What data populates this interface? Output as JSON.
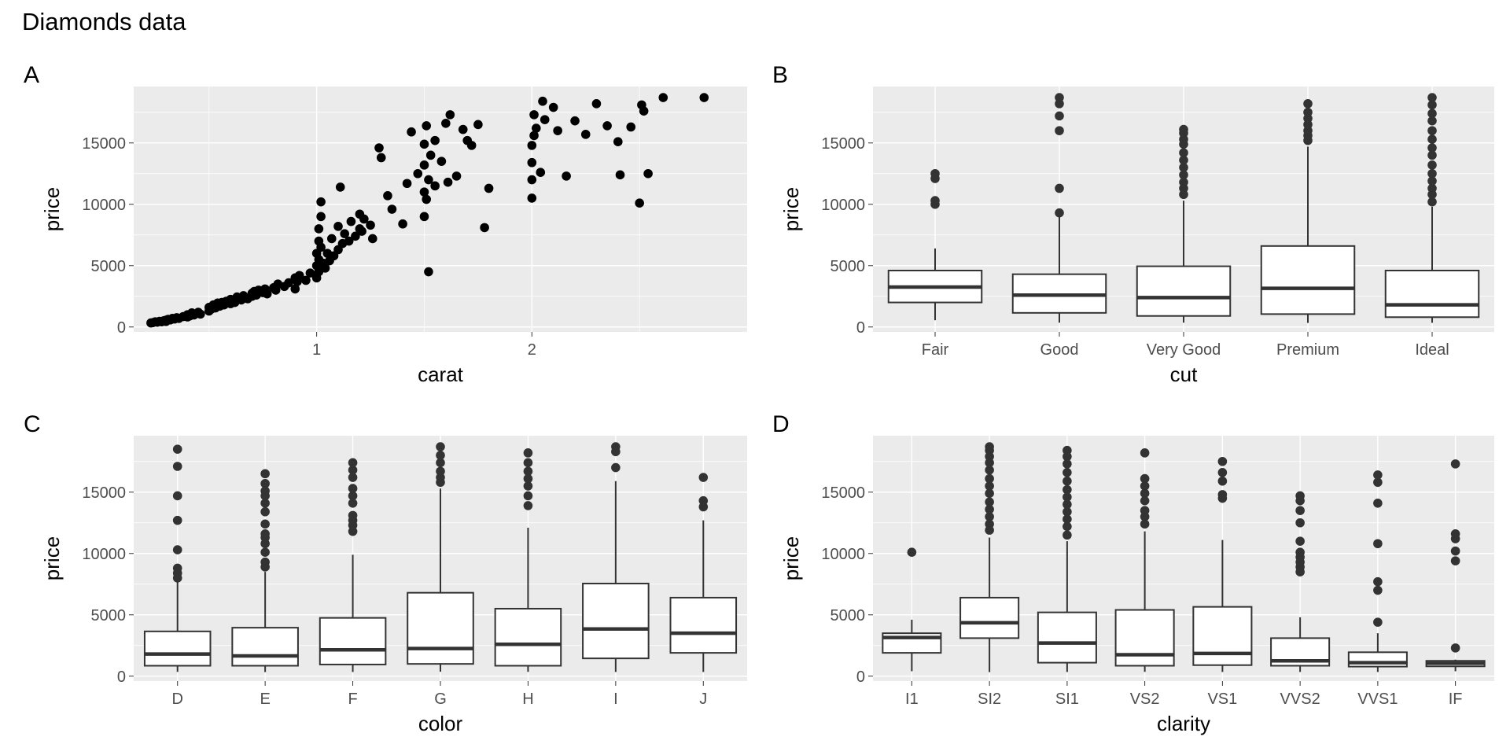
{
  "title": "Diamonds data",
  "chart_data": [
    {
      "tag": "A",
      "type": "scatter",
      "xlabel": "carat",
      "ylabel": "price",
      "xlim": [
        0.15,
        3.0
      ],
      "ylim": [
        -400,
        19600
      ],
      "x_ticks": [
        1,
        2
      ],
      "y_ticks": [
        0,
        5000,
        10000,
        15000
      ],
      "grid": true,
      "points": [
        [
          0.23,
          330
        ],
        [
          0.24,
          360
        ],
        [
          0.25,
          420
        ],
        [
          0.26,
          390
        ],
        [
          0.27,
          460
        ],
        [
          0.28,
          420
        ],
        [
          0.29,
          510
        ],
        [
          0.3,
          450
        ],
        [
          0.3,
          560
        ],
        [
          0.31,
          620
        ],
        [
          0.32,
          580
        ],
        [
          0.33,
          700
        ],
        [
          0.34,
          650
        ],
        [
          0.35,
          760
        ],
        [
          0.36,
          700
        ],
        [
          0.38,
          850
        ],
        [
          0.4,
          820
        ],
        [
          0.4,
          1000
        ],
        [
          0.41,
          900
        ],
        [
          0.42,
          1150
        ],
        [
          0.43,
          980
        ],
        [
          0.45,
          1200
        ],
        [
          0.46,
          1050
        ],
        [
          0.5,
          1300
        ],
        [
          0.5,
          1600
        ],
        [
          0.51,
          1450
        ],
        [
          0.52,
          1800
        ],
        [
          0.53,
          1550
        ],
        [
          0.54,
          1950
        ],
        [
          0.55,
          1700
        ],
        [
          0.56,
          2000
        ],
        [
          0.57,
          1800
        ],
        [
          0.58,
          2100
        ],
        [
          0.6,
          1900
        ],
        [
          0.6,
          2250
        ],
        [
          0.62,
          2000
        ],
        [
          0.63,
          2450
        ],
        [
          0.65,
          2200
        ],
        [
          0.66,
          2550
        ],
        [
          0.68,
          2300
        ],
        [
          0.7,
          2500
        ],
        [
          0.7,
          2750
        ],
        [
          0.71,
          2900
        ],
        [
          0.72,
          2600
        ],
        [
          0.73,
          3000
        ],
        [
          0.75,
          2800
        ],
        [
          0.76,
          3100
        ],
        [
          0.77,
          2700
        ],
        [
          0.8,
          3200
        ],
        [
          0.81,
          3000
        ],
        [
          0.82,
          3500
        ],
        [
          0.85,
          3300
        ],
        [
          0.87,
          3600
        ],
        [
          0.9,
          3100
        ],
        [
          0.9,
          4000
        ],
        [
          0.91,
          3700
        ],
        [
          0.92,
          4200
        ],
        [
          0.95,
          3800
        ],
        [
          0.97,
          4400
        ],
        [
          1.0,
          4000
        ],
        [
          1.0,
          5000
        ],
        [
          1.0,
          6000
        ],
        [
          1.01,
          4500
        ],
        [
          1.01,
          5500
        ],
        [
          1.01,
          7000
        ],
        [
          1.01,
          8000
        ],
        [
          1.02,
          6500
        ],
        [
          1.02,
          9000
        ],
        [
          1.02,
          10200
        ],
        [
          1.03,
          5200
        ],
        [
          1.04,
          4800
        ],
        [
          1.05,
          6000
        ],
        [
          1.06,
          5400
        ],
        [
          1.07,
          7200
        ],
        [
          1.08,
          5800
        ],
        [
          1.1,
          6300
        ],
        [
          1.1,
          8200
        ],
        [
          1.11,
          11400
        ],
        [
          1.12,
          6800
        ],
        [
          1.13,
          7600
        ],
        [
          1.15,
          7000
        ],
        [
          1.16,
          8600
        ],
        [
          1.18,
          7400
        ],
        [
          1.2,
          8000
        ],
        [
          1.2,
          9200
        ],
        [
          1.21,
          7800
        ],
        [
          1.22,
          8800
        ],
        [
          1.25,
          8300
        ],
        [
          1.26,
          7200
        ],
        [
          1.29,
          14600
        ],
        [
          1.3,
          13800
        ],
        [
          1.33,
          10700
        ],
        [
          1.35,
          9600
        ],
        [
          1.4,
          8400
        ],
        [
          1.42,
          11700
        ],
        [
          1.44,
          15900
        ],
        [
          1.47,
          12500
        ],
        [
          1.5,
          9000
        ],
        [
          1.5,
          11000
        ],
        [
          1.5,
          13200
        ],
        [
          1.5,
          14900
        ],
        [
          1.51,
          10400
        ],
        [
          1.51,
          16400
        ],
        [
          1.52,
          12000
        ],
        [
          1.52,
          4500
        ],
        [
          1.53,
          14000
        ],
        [
          1.55,
          11500
        ],
        [
          1.55,
          15200
        ],
        [
          1.58,
          13500
        ],
        [
          1.6,
          16600
        ],
        [
          1.61,
          11800
        ],
        [
          1.62,
          17300
        ],
        [
          1.65,
          12300
        ],
        [
          1.68,
          16100
        ],
        [
          1.7,
          15200
        ],
        [
          1.72,
          14800
        ],
        [
          1.75,
          16500
        ],
        [
          1.78,
          8100
        ],
        [
          1.8,
          11300
        ],
        [
          2.0,
          10500
        ],
        [
          2.0,
          12000
        ],
        [
          2.0,
          13400
        ],
        [
          2.0,
          14800
        ],
        [
          2.01,
          15600
        ],
        [
          2.01,
          17300
        ],
        [
          2.02,
          16200
        ],
        [
          2.04,
          12600
        ],
        [
          2.05,
          18400
        ],
        [
          2.06,
          16900
        ],
        [
          2.1,
          17900
        ],
        [
          2.12,
          16000
        ],
        [
          2.16,
          12300
        ],
        [
          2.2,
          16800
        ],
        [
          2.25,
          15700
        ],
        [
          2.3,
          18200
        ],
        [
          2.35,
          16400
        ],
        [
          2.4,
          15100
        ],
        [
          2.41,
          12400
        ],
        [
          2.46,
          16300
        ],
        [
          2.5,
          10100
        ],
        [
          2.51,
          18100
        ],
        [
          2.52,
          17600
        ],
        [
          2.54,
          12500
        ],
        [
          2.61,
          18700
        ],
        [
          2.8,
          18700
        ]
      ]
    },
    {
      "tag": "B",
      "type": "box",
      "xlabel": "cut",
      "ylabel": "price",
      "ylim": [
        -400,
        19600
      ],
      "y_ticks": [
        0,
        5000,
        10000,
        15000
      ],
      "categories": [
        "Fair",
        "Good",
        "Very Good",
        "Premium",
        "Ideal"
      ],
      "boxes": [
        {
          "low": 550,
          "q1": 2000,
          "median": 3250,
          "q3": 4600,
          "high": 6400,
          "outliers": [
            10000,
            10300,
            12100,
            12500
          ]
        },
        {
          "low": 350,
          "q1": 1150,
          "median": 2600,
          "q3": 4300,
          "high": 9200,
          "outliers": [
            9300,
            11300,
            16000,
            17200,
            18200,
            18700
          ]
        },
        {
          "low": 350,
          "q1": 900,
          "median": 2400,
          "q3": 4950,
          "high": 10300,
          "outliers": [
            10800,
            11300,
            11800,
            12400,
            13000,
            13600,
            14200,
            14900,
            15300,
            15800,
            16100
          ]
        },
        {
          "low": 330,
          "q1": 1050,
          "median": 3150,
          "q3": 6600,
          "high": 14700,
          "outliers": [
            15200,
            15600,
            16000,
            16500,
            17000,
            17500,
            18200
          ]
        },
        {
          "low": 340,
          "q1": 800,
          "median": 1800,
          "q3": 4600,
          "high": 9800,
          "outliers": [
            10200,
            10800,
            11300,
            11900,
            12500,
            13200,
            14000,
            14600,
            15300,
            16000,
            16800,
            17400,
            18100,
            18700
          ]
        }
      ]
    },
    {
      "tag": "C",
      "type": "box",
      "xlabel": "color",
      "ylabel": "price",
      "ylim": [
        -400,
        19600
      ],
      "y_ticks": [
        0,
        5000,
        10000,
        15000
      ],
      "categories": [
        "D",
        "E",
        "F",
        "G",
        "H",
        "I",
        "J"
      ],
      "boxes": [
        {
          "low": 350,
          "q1": 850,
          "median": 1800,
          "q3": 3650,
          "high": 7700,
          "outliers": [
            8000,
            8400,
            8800,
            10300,
            12700,
            14700,
            17100,
            18500
          ]
        },
        {
          "low": 330,
          "q1": 850,
          "median": 1650,
          "q3": 3950,
          "high": 8500,
          "outliers": [
            8900,
            9300,
            10100,
            10800,
            11300,
            11600,
            12400,
            13400,
            14100,
            14700,
            15100,
            15700,
            16500
          ]
        },
        {
          "low": 340,
          "q1": 950,
          "median": 2150,
          "q3": 4750,
          "high": 9900,
          "outliers": [
            11800,
            12300,
            12700,
            13100,
            14100,
            14700,
            15300,
            16200,
            16800,
            17400
          ]
        },
        {
          "low": 360,
          "q1": 1000,
          "median": 2250,
          "q3": 6800,
          "high": 15300,
          "outliers": [
            15800,
            16200,
            16700,
            17400,
            18000,
            18700
          ]
        },
        {
          "low": 350,
          "q1": 850,
          "median": 2600,
          "q3": 5500,
          "high": 12100,
          "outliers": [
            13900,
            14700,
            15500,
            16100,
            16700,
            17400,
            18200
          ]
        },
        {
          "low": 340,
          "q1": 1450,
          "median": 3850,
          "q3": 7550,
          "high": 15900,
          "outliers": [
            17000,
            18300,
            18700
          ]
        },
        {
          "low": 340,
          "q1": 1900,
          "median": 3500,
          "q3": 6400,
          "high": 12700,
          "outliers": [
            13800,
            14300,
            16200
          ]
        }
      ]
    },
    {
      "tag": "D",
      "type": "box",
      "xlabel": "clarity",
      "ylabel": "price",
      "ylim": [
        -400,
        19600
      ],
      "y_ticks": [
        0,
        5000,
        10000,
        15000
      ],
      "categories": [
        "I1",
        "SI2",
        "SI1",
        "VS2",
        "VS1",
        "VVS2",
        "VVS1",
        "IF"
      ],
      "boxes": [
        {
          "low": 400,
          "q1": 1900,
          "median": 3150,
          "q3": 3500,
          "high": 4600,
          "outliers": [
            10100
          ]
        },
        {
          "low": 330,
          "q1": 3100,
          "median": 4350,
          "q3": 6400,
          "high": 11300,
          "outliers": [
            11900,
            12400,
            13000,
            13600,
            14200,
            14900,
            15500,
            16100,
            16800,
            17400,
            17900,
            18400,
            18700
          ]
        },
        {
          "low": 340,
          "q1": 1100,
          "median": 2700,
          "q3": 5200,
          "high": 11000,
          "outliers": [
            11500,
            12200,
            12800,
            13400,
            14000,
            14600,
            15200,
            15900,
            16600,
            17300,
            17900,
            18400
          ]
        },
        {
          "low": 350,
          "q1": 850,
          "median": 1750,
          "q3": 5400,
          "high": 11800,
          "outliers": [
            12400,
            13000,
            13500,
            14300,
            14900,
            15500,
            16100,
            18200
          ]
        },
        {
          "low": 340,
          "q1": 900,
          "median": 1850,
          "q3": 5650,
          "high": 11100,
          "outliers": [
            14500,
            14800,
            15900,
            16600,
            17500
          ]
        },
        {
          "low": 340,
          "q1": 850,
          "median": 1250,
          "q3": 3100,
          "high": 4800,
          "outliers": [
            8500,
            8900,
            9300,
            9700,
            10100,
            11000,
            12500,
            13500,
            14300,
            14700
          ]
        },
        {
          "low": 340,
          "q1": 780,
          "median": 1100,
          "q3": 1950,
          "high": 3500,
          "outliers": [
            4400,
            7000,
            7700,
            10800,
            14100,
            15800,
            16400
          ]
        },
        {
          "low": 400,
          "q1": 800,
          "median": 1050,
          "q3": 1250,
          "high": 1350,
          "outliers": [
            2300,
            9400,
            10200,
            11200,
            11600,
            17300
          ]
        }
      ]
    }
  ]
}
